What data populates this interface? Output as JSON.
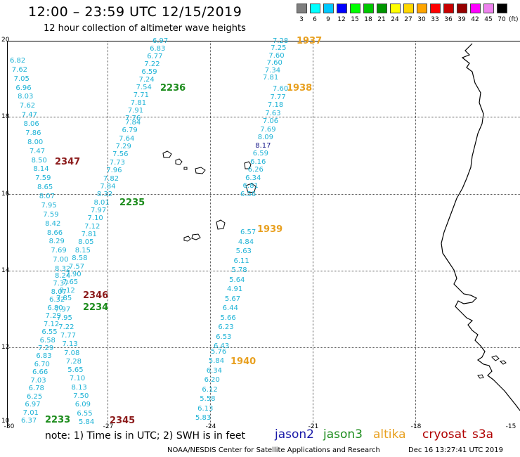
{
  "header": {
    "title": "12:00 – 23:59 UTC 12/15/2019",
    "subtitle": "12 hour collection of altimeter wave heights"
  },
  "color_scale": {
    "labels": [
      "3",
      "6",
      "9",
      "12",
      "15",
      "18",
      "21",
      "24",
      "27",
      "30",
      "33",
      "36",
      "39",
      "42",
      "45",
      "70"
    ],
    "colors": [
      "#7f7f7f",
      "#00ffff",
      "#00c8ff",
      "#0000ff",
      "#00ff00",
      "#00c800",
      "#009600",
      "#ffff00",
      "#ffd700",
      "#ffa500",
      "#ff0000",
      "#c80000",
      "#960000",
      "#ff00ff",
      "#ee82ee",
      "#000000"
    ],
    "unit": "(ft)"
  },
  "axes": {
    "lat_labels": [
      "20",
      "18",
      "16",
      "14",
      "12",
      "10"
    ],
    "lon_labels": [
      "-30",
      "-27",
      "-24",
      "-21",
      "-18",
      "-15"
    ]
  },
  "tracks": [
    {
      "time": "1937",
      "color": "#e8a020",
      "values": [
        "7.28",
        "7.25",
        "7.60",
        "7.60",
        "7.34",
        "7.81"
      ]
    },
    {
      "time": "1938",
      "color": "#e8a020",
      "values": [
        "7.60",
        "7.77",
        "7.18",
        "7.63",
        "7.06",
        "7.69",
        "8.09",
        "8.17",
        "6.59",
        "6.16",
        "6.26",
        "6.34",
        "6.81",
        "6.56"
      ]
    },
    {
      "time": "1939",
      "color": "#e8a020",
      "values": [
        "6.57",
        "4.84",
        "5.63",
        "6.11",
        "5.78",
        "5.64",
        "4.91",
        "5.67",
        "6.44",
        "5.66",
        "6.23",
        "6.53",
        "6.43"
      ]
    },
    {
      "time": "1940",
      "color": "#e8a020",
      "values": [
        "5.76",
        "5.84",
        "6.34",
        "6.20",
        "6.12",
        "5.58",
        "6.13",
        "5.83"
      ]
    },
    {
      "time": "2236",
      "color": "#1c8c1c",
      "values": [
        "6.97",
        "6.83",
        "6.77",
        "7.22",
        "6.59",
        "7.24",
        "7.54",
        "7.71",
        "7.81",
        "7.91",
        "7.76"
      ]
    },
    {
      "time": "2235",
      "color": "#1c8c1c",
      "values": [
        "7.84",
        "6.79",
        "7.64",
        "7.29",
        "7.56",
        "7.73",
        "7.96",
        "7.82",
        "7.84",
        "8.32",
        "8.01",
        "7.97",
        "7.10",
        "7.12",
        "7.81",
        "8.05",
        "8.15",
        "8.58",
        "7.57",
        "7.90",
        "7.65",
        "8.12",
        "7.85"
      ]
    },
    {
      "time": "2234",
      "color": "#1c8c1c",
      "values": [
        "7.97",
        "7.95",
        "7.22",
        "7.77",
        "7.13",
        "7.08",
        "7.28",
        "5.65",
        "7.10",
        "8.13",
        "7.50",
        "6.09",
        "6.55",
        "5.84"
      ]
    },
    {
      "time": "2347",
      "color": "#8b1a1a",
      "values": [
        "6.82",
        "7.62",
        "7.05",
        "6.96",
        "8.03",
        "7.62",
        "7.47",
        "8.06",
        "7.86",
        "8.00",
        "7.47",
        "8.50",
        "8.14",
        "7.59",
        "8.65",
        "8.07",
        "7.95",
        "7.59",
        "8.42",
        "8.66",
        "8.29",
        "7.69",
        "7.00",
        "8.32"
      ]
    },
    {
      "time": "2346",
      "color": "#8b1a1a",
      "values": [
        "8.24",
        "7.37",
        "8.07",
        "6.32",
        "6.80",
        "7.29",
        "7.12",
        "6.55",
        "6.58",
        "7.29",
        "6.83",
        "6.70",
        "6.66",
        "7.03",
        "6.78",
        "6.25",
        "6.97",
        "7.01",
        "6.37"
      ]
    },
    {
      "time": "2233",
      "color": "#1c8c1c",
      "values": []
    },
    {
      "time": "2345",
      "color": "#8b1a1a",
      "values": []
    }
  ],
  "footer": {
    "note": "note: 1) Time is in UTC; 2) SWH is in feet",
    "credit": "NOAA/NESDIS Center for Satellite Applications and Research",
    "timestamp": "Dec 16 13:27:41 UTC 2019",
    "legend": [
      {
        "name": "jason2",
        "color": "#1a1aa8"
      },
      {
        "name": "jason3",
        "color": "#1c8c1c"
      },
      {
        "name": "altika",
        "color": "#e8a020"
      },
      {
        "name": "cryosat",
        "color": "#b00000"
      },
      {
        "name": "s3a",
        "color": "#b00000"
      }
    ]
  }
}
